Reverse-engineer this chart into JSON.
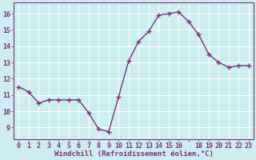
{
  "x": [
    0,
    1,
    2,
    3,
    4,
    5,
    6,
    7,
    8,
    9,
    10,
    11,
    12,
    13,
    14,
    15,
    16,
    17,
    18,
    19,
    20,
    21,
    22,
    23
  ],
  "y": [
    11.5,
    11.2,
    10.5,
    10.7,
    10.7,
    10.7,
    10.7,
    9.9,
    8.9,
    8.75,
    10.9,
    13.1,
    14.3,
    14.9,
    15.9,
    16.0,
    16.1,
    15.5,
    14.7,
    13.5,
    13.0,
    12.7,
    12.8,
    12.8
  ],
  "line_color": "#7b2f7b",
  "marker": "+",
  "marker_size": 4,
  "linewidth": 1.0,
  "xlabel": "Windchill (Refroidissement éolien,°C)",
  "xlabel_fontsize": 6.5,
  "xtick_labels": [
    "0",
    "1",
    "2",
    "3",
    "4",
    "5",
    "6",
    "7",
    "8",
    "9",
    "10",
    "11",
    "12",
    "13",
    "14",
    "15",
    "16",
    "",
    "18",
    "19",
    "20",
    "21",
    "22",
    "23"
  ],
  "ytick_values": [
    9,
    10,
    11,
    12,
    13,
    14,
    15,
    16
  ],
  "ylim": [
    8.3,
    16.7
  ],
  "xlim": [
    -0.5,
    23.5
  ],
  "background_color": "#cceef0",
  "grid_color": "#ffffff",
  "tick_fontsize": 6.0,
  "spine_color": "#7b2f7b"
}
